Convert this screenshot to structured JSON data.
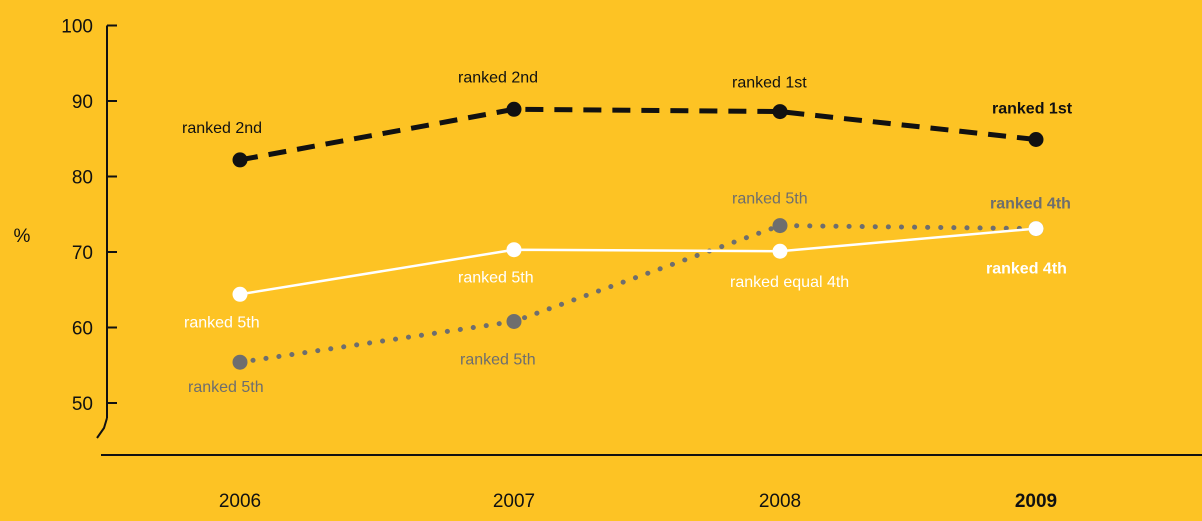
{
  "chart_data": {
    "type": "line",
    "title": "",
    "xlabel": "",
    "ylabel": "%",
    "ylim": [
      45,
      100
    ],
    "yticks": [
      50,
      60,
      70,
      80,
      90,
      100
    ],
    "x": [
      "2006",
      "2007",
      "2008",
      "2009"
    ],
    "highlight_x": "2009",
    "grid": false,
    "series": [
      {
        "style": "dashed",
        "color": "#111111",
        "values": [
          82.2,
          88.9,
          88.6,
          84.9
        ],
        "labels": [
          "ranked 2nd",
          "ranked 2nd",
          "ranked 1st",
          "ranked 1st"
        ]
      },
      {
        "style": "solid",
        "color": "#FFFFFF",
        "values": [
          64.4,
          70.3,
          70.1,
          73.1
        ],
        "labels": [
          "ranked 5th",
          "ranked 5th",
          "ranked equal 4th",
          "ranked 4th"
        ]
      },
      {
        "style": "dotted",
        "color": "#6E6E6E",
        "values": [
          55.4,
          60.8,
          73.5,
          73.1
        ],
        "labels": [
          "ranked 5th",
          "ranked 5th",
          "ranked 5th",
          "ranked 4th"
        ]
      }
    ]
  }
}
